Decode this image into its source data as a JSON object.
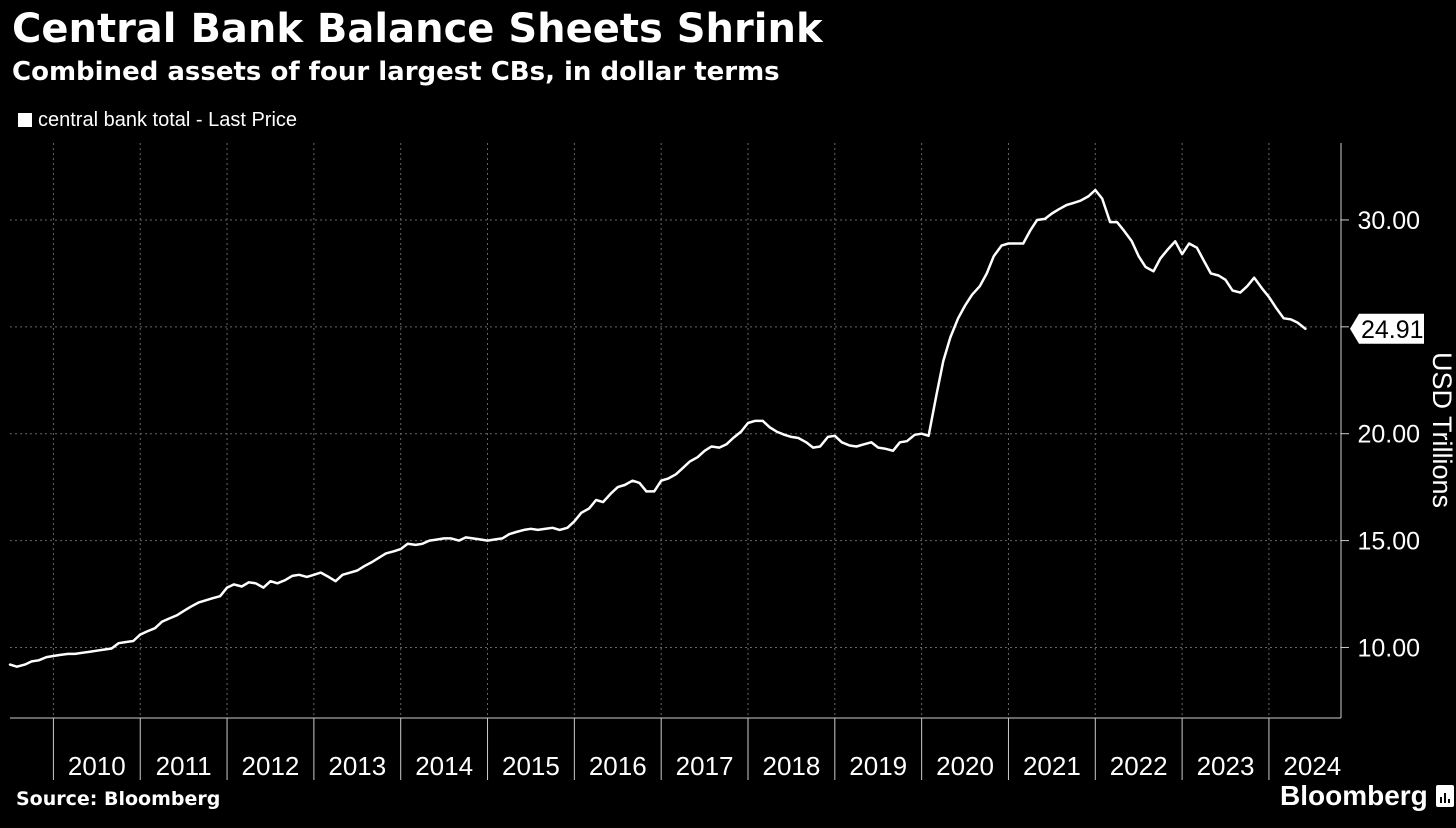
{
  "header": {
    "title": "Central Bank Balance Sheets Shrink",
    "subtitle": "Combined assets of four largest CBs, in dollar terms",
    "legend_label": "central bank total - Last Price"
  },
  "footer": {
    "source": "Source: Bloomberg",
    "brand": "Bloomberg"
  },
  "colors": {
    "background": "#000000",
    "line": "#ffffff",
    "grid": "#666666"
  },
  "chart_data": {
    "type": "line",
    "title": "Central Bank Balance Sheets Shrink",
    "subtitle": "Combined assets of four largest CBs, in dollar terms",
    "xlabel": "",
    "ylabel": "USD Trillions",
    "xlim": [
      2009.5,
      2024.83
    ],
    "ylim": [
      6.7,
      33.6
    ],
    "y_ticks": [
      10,
      15,
      20,
      25,
      30
    ],
    "y_tick_labels": [
      "10.00",
      "15.00",
      "20.00",
      "25.00",
      "30.00"
    ],
    "x_tick_labels": [
      "2010",
      "2011",
      "2012",
      "2013",
      "2014",
      "2015",
      "2016",
      "2017",
      "2018",
      "2019",
      "2020",
      "2021",
      "2022",
      "2023",
      "2024"
    ],
    "grid": true,
    "legend": "top-left",
    "last_value": 24.91,
    "last_value_label": "24.91",
    "series": [
      {
        "name": "central bank total - Last Price",
        "points": [
          [
            2009.5,
            9.2
          ],
          [
            2009.58,
            9.1
          ],
          [
            2009.67,
            9.2
          ],
          [
            2009.75,
            9.35
          ],
          [
            2009.83,
            9.4
          ],
          [
            2009.92,
            9.55
          ],
          [
            2010.0,
            9.6
          ],
          [
            2010.08,
            9.65
          ],
          [
            2010.17,
            9.7
          ],
          [
            2010.25,
            9.7
          ],
          [
            2010.33,
            9.75
          ],
          [
            2010.42,
            9.8
          ],
          [
            2010.5,
            9.85
          ],
          [
            2010.58,
            9.9
          ],
          [
            2010.67,
            9.95
          ],
          [
            2010.75,
            10.2
          ],
          [
            2010.83,
            10.25
          ],
          [
            2010.92,
            10.3
          ],
          [
            2011.0,
            10.6
          ],
          [
            2011.08,
            10.75
          ],
          [
            2011.17,
            10.9
          ],
          [
            2011.25,
            11.2
          ],
          [
            2011.33,
            11.35
          ],
          [
            2011.42,
            11.5
          ],
          [
            2011.5,
            11.7
          ],
          [
            2011.58,
            11.9
          ],
          [
            2011.67,
            12.1
          ],
          [
            2011.75,
            12.2
          ],
          [
            2011.83,
            12.3
          ],
          [
            2011.92,
            12.4
          ],
          [
            2012.0,
            12.8
          ],
          [
            2012.08,
            12.95
          ],
          [
            2012.17,
            12.85
          ],
          [
            2012.25,
            13.05
          ],
          [
            2012.33,
            13.0
          ],
          [
            2012.42,
            12.8
          ],
          [
            2012.5,
            13.1
          ],
          [
            2012.58,
            13.0
          ],
          [
            2012.67,
            13.15
          ],
          [
            2012.75,
            13.35
          ],
          [
            2012.83,
            13.4
          ],
          [
            2012.92,
            13.3
          ],
          [
            2013.0,
            13.4
          ],
          [
            2013.08,
            13.5
          ],
          [
            2013.17,
            13.3
          ],
          [
            2013.25,
            13.1
          ],
          [
            2013.33,
            13.4
          ],
          [
            2013.42,
            13.5
          ],
          [
            2013.5,
            13.6
          ],
          [
            2013.58,
            13.8
          ],
          [
            2013.67,
            14.0
          ],
          [
            2013.75,
            14.2
          ],
          [
            2013.83,
            14.4
          ],
          [
            2013.92,
            14.5
          ],
          [
            2014.0,
            14.6
          ],
          [
            2014.08,
            14.85
          ],
          [
            2014.17,
            14.8
          ],
          [
            2014.25,
            14.85
          ],
          [
            2014.33,
            15.0
          ],
          [
            2014.42,
            15.05
          ],
          [
            2014.5,
            15.1
          ],
          [
            2014.58,
            15.1
          ],
          [
            2014.67,
            15.0
          ],
          [
            2014.75,
            15.15
          ],
          [
            2014.83,
            15.1
          ],
          [
            2014.92,
            15.05
          ],
          [
            2015.0,
            15.0
          ],
          [
            2015.08,
            15.05
          ],
          [
            2015.17,
            15.1
          ],
          [
            2015.25,
            15.3
          ],
          [
            2015.33,
            15.4
          ],
          [
            2015.42,
            15.5
          ],
          [
            2015.5,
            15.55
          ],
          [
            2015.58,
            15.5
          ],
          [
            2015.67,
            15.55
          ],
          [
            2015.75,
            15.6
          ],
          [
            2015.83,
            15.5
          ],
          [
            2015.92,
            15.6
          ],
          [
            2016.0,
            15.9
          ],
          [
            2016.08,
            16.3
          ],
          [
            2016.17,
            16.5
          ],
          [
            2016.25,
            16.9
          ],
          [
            2016.33,
            16.8
          ],
          [
            2016.42,
            17.2
          ],
          [
            2016.5,
            17.5
          ],
          [
            2016.58,
            17.6
          ],
          [
            2016.67,
            17.8
          ],
          [
            2016.75,
            17.7
          ],
          [
            2016.83,
            17.3
          ],
          [
            2016.92,
            17.3
          ],
          [
            2017.0,
            17.8
          ],
          [
            2017.08,
            17.9
          ],
          [
            2017.17,
            18.1
          ],
          [
            2017.25,
            18.4
          ],
          [
            2017.33,
            18.7
          ],
          [
            2017.42,
            18.9
          ],
          [
            2017.5,
            19.2
          ],
          [
            2017.58,
            19.4
          ],
          [
            2017.67,
            19.35
          ],
          [
            2017.75,
            19.5
          ],
          [
            2017.83,
            19.8
          ],
          [
            2017.92,
            20.1
          ],
          [
            2018.0,
            20.5
          ],
          [
            2018.08,
            20.6
          ],
          [
            2018.17,
            20.6
          ],
          [
            2018.25,
            20.3
          ],
          [
            2018.33,
            20.1
          ],
          [
            2018.42,
            19.95
          ],
          [
            2018.5,
            19.85
          ],
          [
            2018.58,
            19.8
          ],
          [
            2018.67,
            19.6
          ],
          [
            2018.75,
            19.35
          ],
          [
            2018.83,
            19.4
          ],
          [
            2018.92,
            19.85
          ],
          [
            2019.0,
            19.9
          ],
          [
            2019.08,
            19.6
          ],
          [
            2019.17,
            19.45
          ],
          [
            2019.25,
            19.4
          ],
          [
            2019.33,
            19.5
          ],
          [
            2019.42,
            19.6
          ],
          [
            2019.5,
            19.35
          ],
          [
            2019.58,
            19.3
          ],
          [
            2019.67,
            19.2
          ],
          [
            2019.75,
            19.6
          ],
          [
            2019.83,
            19.65
          ],
          [
            2019.92,
            19.95
          ],
          [
            2020.0,
            20.0
          ],
          [
            2020.08,
            19.9
          ],
          [
            2020.17,
            21.8
          ],
          [
            2020.25,
            23.4
          ],
          [
            2020.33,
            24.5
          ],
          [
            2020.42,
            25.4
          ],
          [
            2020.5,
            26.0
          ],
          [
            2020.58,
            26.5
          ],
          [
            2020.67,
            26.9
          ],
          [
            2020.75,
            27.5
          ],
          [
            2020.83,
            28.3
          ],
          [
            2020.92,
            28.8
          ],
          [
            2021.0,
            28.9
          ],
          [
            2021.08,
            28.9
          ],
          [
            2021.17,
            28.9
          ],
          [
            2021.25,
            29.5
          ],
          [
            2021.33,
            30.0
          ],
          [
            2021.42,
            30.05
          ],
          [
            2021.5,
            30.3
          ],
          [
            2021.58,
            30.5
          ],
          [
            2021.67,
            30.7
          ],
          [
            2021.75,
            30.8
          ],
          [
            2021.83,
            30.9
          ],
          [
            2021.92,
            31.1
          ],
          [
            2022.0,
            31.4
          ],
          [
            2022.08,
            31.0
          ],
          [
            2022.17,
            29.9
          ],
          [
            2022.25,
            29.9
          ],
          [
            2022.33,
            29.5
          ],
          [
            2022.42,
            29.0
          ],
          [
            2022.5,
            28.3
          ],
          [
            2022.58,
            27.8
          ],
          [
            2022.67,
            27.6
          ],
          [
            2022.75,
            28.2
          ],
          [
            2022.83,
            28.6
          ],
          [
            2022.92,
            29.0
          ],
          [
            2023.0,
            28.4
          ],
          [
            2023.08,
            28.9
          ],
          [
            2023.17,
            28.7
          ],
          [
            2023.25,
            28.1
          ],
          [
            2023.33,
            27.5
          ],
          [
            2023.42,
            27.4
          ],
          [
            2023.5,
            27.2
          ],
          [
            2023.58,
            26.7
          ],
          [
            2023.67,
            26.6
          ],
          [
            2023.75,
            26.9
          ],
          [
            2023.83,
            27.3
          ],
          [
            2023.92,
            26.8
          ],
          [
            2024.0,
            26.4
          ],
          [
            2024.08,
            25.9
          ],
          [
            2024.17,
            25.4
          ],
          [
            2024.25,
            25.35
          ],
          [
            2024.33,
            25.2
          ],
          [
            2024.42,
            24.91
          ]
        ]
      }
    ]
  }
}
